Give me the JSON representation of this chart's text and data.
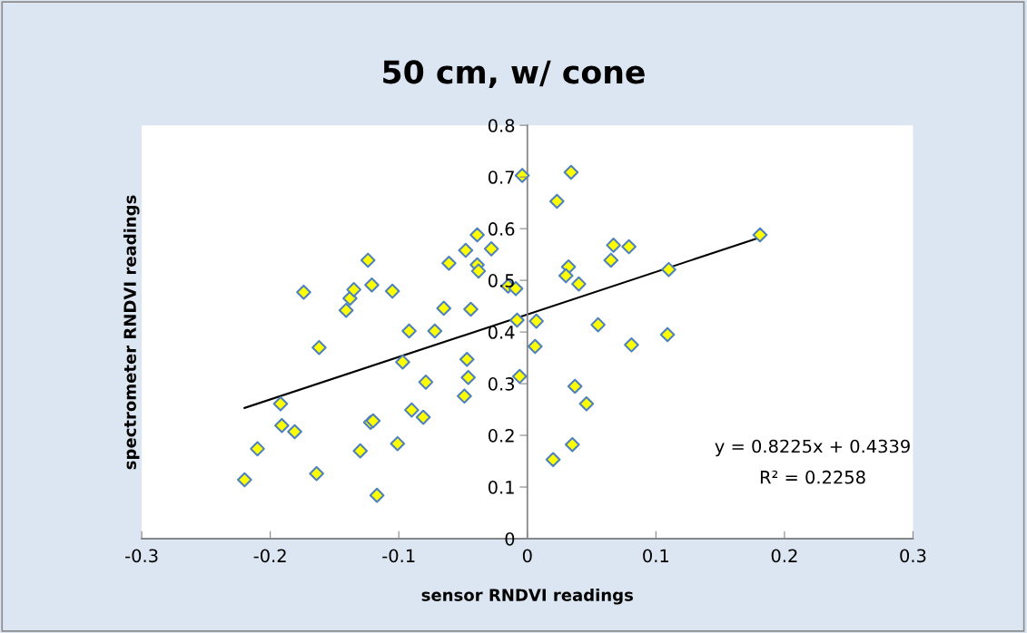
{
  "chart_data": {
    "type": "scatter",
    "title": "50 cm, w/ cone",
    "xlabel": "sensor RNDVI readings",
    "ylabel": "spectrometer RNDVI readings",
    "xlim": [
      -0.3,
      0.3
    ],
    "xticks": [
      -0.3,
      -0.2,
      -0.1,
      0,
      0.1,
      0.2,
      0.3
    ],
    "ylim": [
      0,
      0.8
    ],
    "yticks": [
      0,
      0.1,
      0.2,
      0.3,
      0.4,
      0.5,
      0.6,
      0.7,
      0.8
    ],
    "grid": false,
    "marker": "diamond",
    "series": [
      {
        "color": "#ffff00",
        "x": [
          -0.22,
          -0.21,
          -0.192,
          -0.191,
          -0.181,
          -0.174,
          -0.162,
          -0.164,
          -0.13,
          -0.141,
          -0.138,
          -0.135,
          -0.124,
          -0.121,
          -0.122,
          -0.12,
          -0.117,
          -0.105,
          -0.101,
          -0.097,
          -0.092,
          -0.09,
          -0.081,
          -0.079,
          -0.072,
          -0.065,
          -0.061,
          -0.049,
          -0.047,
          -0.046,
          -0.044,
          -0.048,
          -0.039,
          -0.028,
          -0.039,
          -0.038,
          -0.015,
          -0.009,
          -0.008,
          -0.006,
          -0.004,
          0.034,
          0.023,
          0.181,
          0.067,
          0.079,
          0.065,
          0.032,
          0.03,
          0.04,
          0.11,
          0.007,
          0.055,
          0.006,
          0.081,
          0.109,
          0.037,
          0.046,
          0.035,
          0.02
        ],
        "values": [
          0.114,
          0.174,
          0.261,
          0.219,
          0.207,
          0.477,
          0.37,
          0.126,
          0.17,
          0.442,
          0.465,
          0.482,
          0.539,
          0.491,
          0.225,
          0.228,
          0.084,
          0.479,
          0.184,
          0.342,
          0.402,
          0.249,
          0.235,
          0.303,
          0.402,
          0.446,
          0.533,
          0.276,
          0.347,
          0.312,
          0.444,
          0.558,
          0.588,
          0.561,
          0.53,
          0.518,
          0.489,
          0.484,
          0.423,
          0.314,
          0.703,
          0.709,
          0.653,
          0.588,
          0.568,
          0.565,
          0.539,
          0.526,
          0.509,
          0.493,
          0.521,
          0.421,
          0.414,
          0.372,
          0.375,
          0.395,
          0.295,
          0.261,
          0.182,
          0.153
        ]
      },
      {
        "type": "line",
        "color": "#000000",
        "marker": "none",
        "line_style": "solid",
        "x": [
          -0.22,
          0.181
        ],
        "values": [
          0.253,
          0.583
        ]
      }
    ],
    "annotations": [
      "y = 0.8225x + 0.4339",
      "R² = 0.2258"
    ]
  }
}
